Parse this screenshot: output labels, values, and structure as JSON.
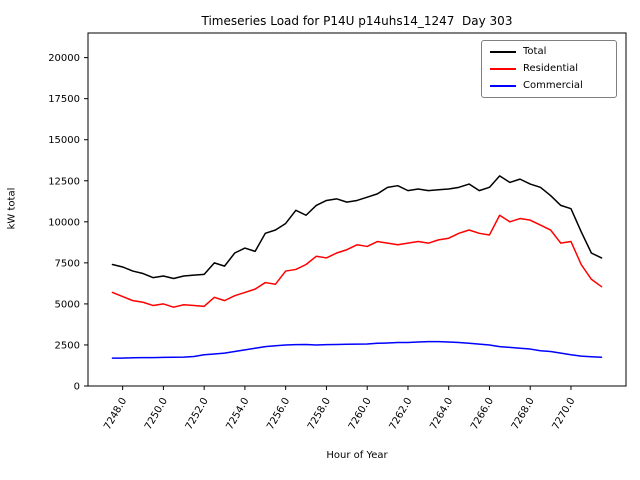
{
  "chart_data": {
    "type": "line",
    "title": "Timeseries Load for P14U p14uhs14_1247  Day 303",
    "xlabel": "Hour of Year",
    "ylabel": "kW total",
    "xlim": [
      7246.3,
      7272.7
    ],
    "ylim": [
      0,
      21500
    ],
    "grid": false,
    "legend_position": "upper right",
    "xticks": {
      "values": [
        7248,
        7250,
        7252,
        7254,
        7256,
        7258,
        7260,
        7262,
        7264,
        7266,
        7268,
        7270
      ],
      "labels": [
        "7248.0",
        "7250.0",
        "7252.0",
        "7254.0",
        "7256.0",
        "7258.0",
        "7260.0",
        "7262.0",
        "7264.0",
        "7266.0",
        "7268.0",
        "7270.0"
      ]
    },
    "yticks": {
      "values": [
        0,
        2500,
        5000,
        7500,
        10000,
        12500,
        15000,
        17500,
        20000
      ],
      "labels": [
        "0",
        "2500",
        "5000",
        "7500",
        "10000",
        "12500",
        "15000",
        "17500",
        "20000"
      ]
    },
    "x": [
      7247.5,
      7248.0,
      7248.5,
      7249.0,
      7249.5,
      7250.0,
      7250.5,
      7251.0,
      7251.5,
      7252.0,
      7252.5,
      7253.0,
      7253.5,
      7254.0,
      7254.5,
      7255.0,
      7255.5,
      7256.0,
      7256.5,
      7257.0,
      7257.5,
      7258.0,
      7258.5,
      7259.0,
      7259.5,
      7260.0,
      7260.5,
      7261.0,
      7261.5,
      7262.0,
      7262.5,
      7263.0,
      7263.5,
      7264.0,
      7264.5,
      7265.0,
      7265.5,
      7266.0,
      7266.5,
      7267.0,
      7267.5,
      7268.0,
      7268.5,
      7269.0,
      7269.5,
      7270.0,
      7270.5,
      7271.0,
      7271.5
    ],
    "series": [
      {
        "name": "Total",
        "color": "#000000",
        "values": [
          7400,
          7250,
          7000,
          6850,
          6600,
          6700,
          6550,
          6700,
          6750,
          6800,
          7500,
          7300,
          8100,
          8400,
          8200,
          9300,
          9500,
          9900,
          10700,
          10400,
          11000,
          11300,
          11400,
          11200,
          11300,
          11500,
          11700,
          12100,
          12200,
          11900,
          12000,
          11900,
          11950,
          12000,
          12100,
          12300,
          11900,
          12100,
          12800,
          12400,
          12600,
          12300,
          12100,
          11600,
          11000,
          10800,
          9400,
          8100,
          7800
        ]
      },
      {
        "name": "Residential",
        "color": "#ff0000",
        "values": [
          5700,
          5450,
          5200,
          5100,
          4900,
          5000,
          4800,
          4950,
          4900,
          4850,
          5400,
          5200,
          5500,
          5700,
          5900,
          6300,
          6200,
          7000,
          7100,
          7400,
          7900,
          7800,
          8100,
          8300,
          8600,
          8500,
          8800,
          8700,
          8600,
          8700,
          8800,
          8700,
          8900,
          9000,
          9300,
          9500,
          9300,
          9200,
          10400,
          10000,
          10200,
          10100,
          9800,
          9500,
          8700,
          8800,
          7400,
          6500,
          6050
        ]
      },
      {
        "name": "Commercial",
        "color": "#0000ff",
        "values": [
          1700,
          1700,
          1720,
          1730,
          1730,
          1740,
          1750,
          1760,
          1800,
          1900,
          1950,
          2000,
          2100,
          2200,
          2300,
          2400,
          2450,
          2500,
          2520,
          2530,
          2500,
          2520,
          2530,
          2540,
          2550,
          2560,
          2600,
          2620,
          2650,
          2650,
          2680,
          2700,
          2700,
          2680,
          2650,
          2600,
          2550,
          2500,
          2400,
          2350,
          2300,
          2250,
          2150,
          2100,
          2000,
          1900,
          1820,
          1780,
          1750
        ]
      }
    ]
  }
}
